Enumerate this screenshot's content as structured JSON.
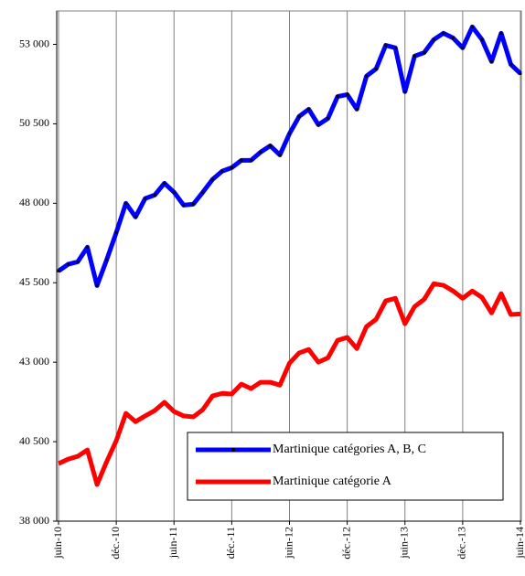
{
  "chart_data": {
    "type": "line",
    "categories": [
      "juin-10",
      null,
      null,
      null,
      null,
      null,
      "déc.-10",
      null,
      null,
      null,
      null,
      null,
      "juin-11",
      null,
      null,
      null,
      null,
      null,
      "déc.-11",
      null,
      null,
      null,
      null,
      null,
      "juin-12",
      null,
      null,
      null,
      null,
      null,
      "déc.-12",
      null,
      null,
      null,
      null,
      null,
      "juin-13",
      null,
      null,
      null,
      null,
      null,
      "déc.-13",
      null,
      null,
      null,
      null,
      null,
      "juin-14"
    ],
    "series": [
      {
        "name": "Martinique catégories A, B, C",
        "color": "#0000ff",
        "marker_color": "#000000",
        "values": [
          45870,
          46080,
          46160,
          46620,
          45410,
          46220,
          47080,
          48000,
          47570,
          48150,
          48260,
          48630,
          48350,
          47940,
          47970,
          48350,
          48750,
          49010,
          49120,
          49350,
          49350,
          49610,
          49810,
          49520,
          50190,
          50730,
          50960,
          50470,
          50670,
          51360,
          51420,
          50960,
          52000,
          52230,
          52970,
          52890,
          51510,
          52630,
          52740,
          53150,
          53350,
          53200,
          52890,
          53550,
          53150,
          52460,
          53350,
          52370,
          52080
        ]
      },
      {
        "name": "Martinique catégorie A",
        "color": "#ff0000",
        "values": [
          39810,
          39950,
          40040,
          40240,
          39150,
          39870,
          40530,
          41390,
          41130,
          41310,
          41480,
          41740,
          41450,
          41310,
          41280,
          41510,
          41940,
          42020,
          42000,
          42310,
          42170,
          42370,
          42370,
          42280,
          42970,
          43290,
          43400,
          43000,
          43140,
          43690,
          43780,
          43430,
          44120,
          44350,
          44930,
          45010,
          44210,
          44750,
          44980,
          45470,
          45420,
          45240,
          45010,
          45240,
          45040,
          44550,
          45160,
          44500,
          44520
        ]
      }
    ],
    "ylim": [
      38000,
      54050
    ],
    "yticks": [
      {
        "value": 38000,
        "label": "38 000"
      },
      {
        "value": 40500,
        "label": "40 500"
      },
      {
        "value": 43000,
        "label": "43 000"
      },
      {
        "value": 45500,
        "label": "45 500"
      },
      {
        "value": 48000,
        "label": "48 000"
      },
      {
        "value": 50500,
        "label": "50 500"
      },
      {
        "value": 53000,
        "label": "53 000"
      }
    ],
    "grid": "x"
  }
}
